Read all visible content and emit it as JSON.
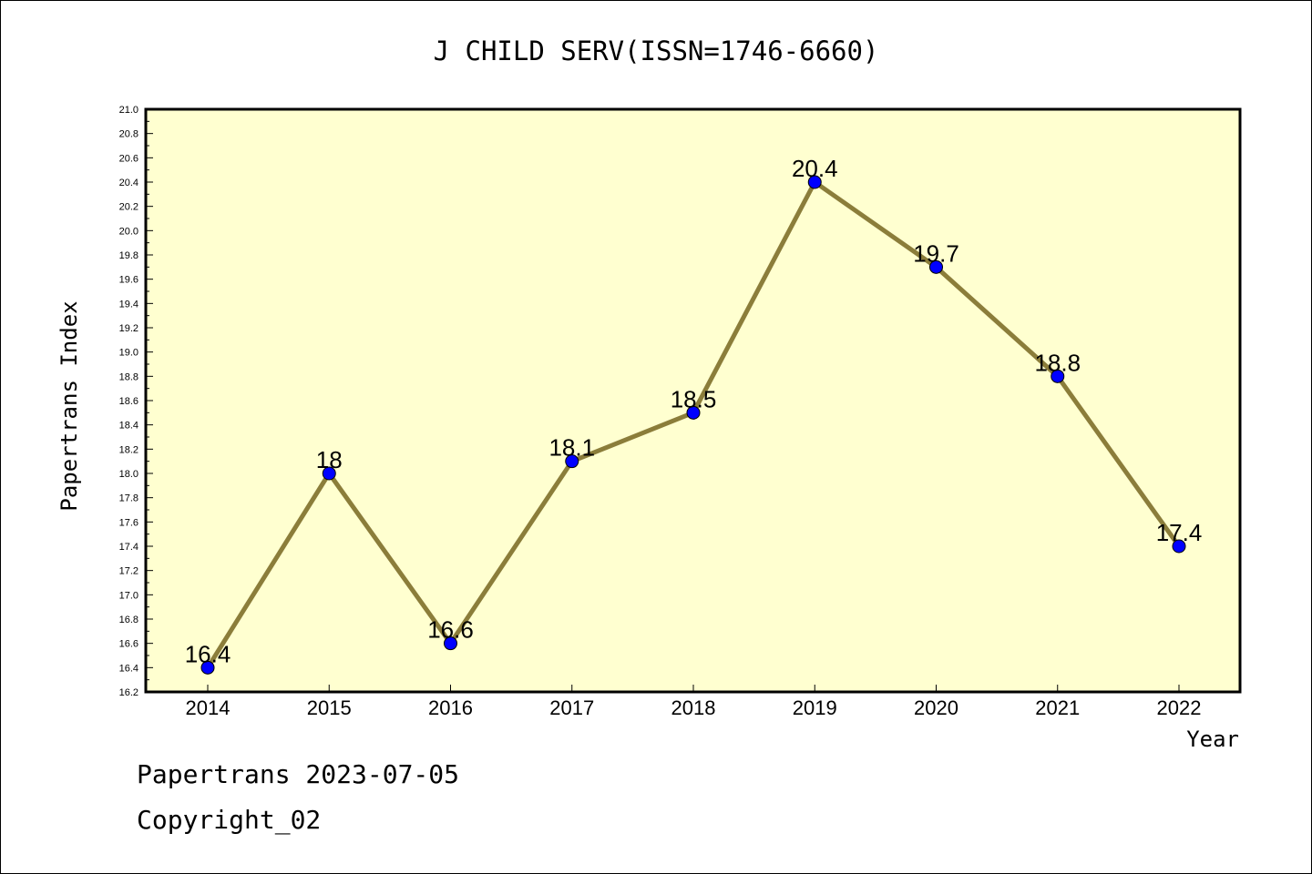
{
  "chart_data": {
    "type": "line",
    "title": "J CHILD SERV(ISSN=1746-6660)",
    "xlabel": "Year",
    "ylabel": "Papertrans Index",
    "x": [
      "2014",
      "2015",
      "2016",
      "2017",
      "2018",
      "2019",
      "2020",
      "2021",
      "2022"
    ],
    "series": [
      {
        "values": [
          16.4,
          18,
          16.6,
          18.1,
          18.5,
          20.4,
          19.7,
          18.8,
          17.4
        ],
        "data_labels": [
          "16.4",
          "18",
          "16.6",
          "18.1",
          "18.5",
          "20.4",
          "19.7",
          "18.8",
          "17.4"
        ]
      }
    ],
    "ylim": [
      16.2,
      21.0
    ],
    "ytick_step": 0.2,
    "yticks": [
      "16.2",
      "16.4",
      "16.6",
      "16.8",
      "17.0",
      "17.2",
      "17.4",
      "17.6",
      "17.8",
      "18.0",
      "18.2",
      "18.4",
      "18.6",
      "18.8",
      "19.0",
      "19.2",
      "19.4",
      "19.6",
      "19.8",
      "20.0",
      "20.2",
      "20.4",
      "20.6",
      "20.8",
      "21.0"
    ],
    "grid": false,
    "legend": "none",
    "colors": {
      "plot_background": "#ffffd0",
      "line": "#8b7d3a",
      "marker": "#0000ff"
    }
  },
  "footer": {
    "line1": "Papertrans 2023-07-05",
    "line2": "Copyright_02"
  }
}
